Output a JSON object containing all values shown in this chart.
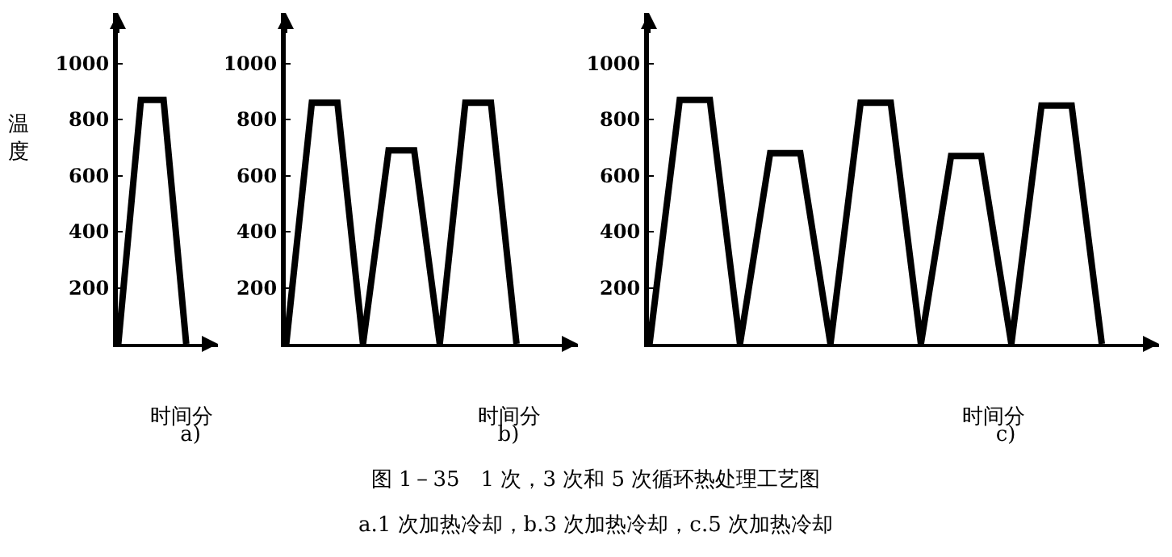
{
  "chart_data": [
    {
      "type": "line",
      "ylabel": "温度",
      "xlabel": "时间分",
      "annotations": [
        "a)"
      ],
      "categories": [
        null,
        null,
        null,
        null
      ],
      "series": [
        {
          "color": "#000000",
          "values": [
            0,
            870,
            870,
            0
          ]
        }
      ],
      "ylim": [
        0,
        1180
      ],
      "yticks": [
        200,
        400,
        600,
        800,
        1000
      ],
      "tick_labels": "y",
      "grid": false,
      "legend": false,
      "marker": "none",
      "line_style": "solid"
    },
    {
      "type": "line",
      "xlabel": "时间分",
      "annotations": [
        "b)"
      ],
      "categories": [
        null,
        null,
        null,
        null,
        null,
        null,
        null,
        null,
        null,
        null
      ],
      "series": [
        {
          "color": "#000000",
          "values": [
            0,
            860,
            860,
            0,
            690,
            690,
            0,
            860,
            860,
            0
          ]
        }
      ],
      "ylim": [
        0,
        1180
      ],
      "yticks": [
        200,
        400,
        600,
        800,
        1000
      ],
      "tick_labels": "y",
      "grid": false,
      "legend": false,
      "marker": "none",
      "line_style": "solid"
    },
    {
      "type": "line",
      "xlabel": "时间分",
      "annotations": [
        "c)",
        "图 1－35　1 次，3 次和 5 次循环热处理工艺图",
        "a.1 次加热冷却，b.3 次加热冷却，c.5 次加热冷却"
      ],
      "categories": [
        null,
        null,
        null,
        null,
        null,
        null,
        null,
        null,
        null,
        null,
        null,
        null,
        null,
        null,
        null,
        null
      ],
      "series": [
        {
          "color": "#000000",
          "values": [
            0,
            870,
            870,
            0,
            680,
            680,
            0,
            860,
            860,
            0,
            670,
            670,
            0,
            850,
            850,
            0
          ]
        }
      ],
      "ylim": [
        0,
        1180
      ],
      "yticks": [
        200,
        400,
        600,
        800,
        1000
      ],
      "tick_labels": "y",
      "grid": false,
      "legend": false,
      "marker": "none",
      "line_style": "solid"
    }
  ]
}
